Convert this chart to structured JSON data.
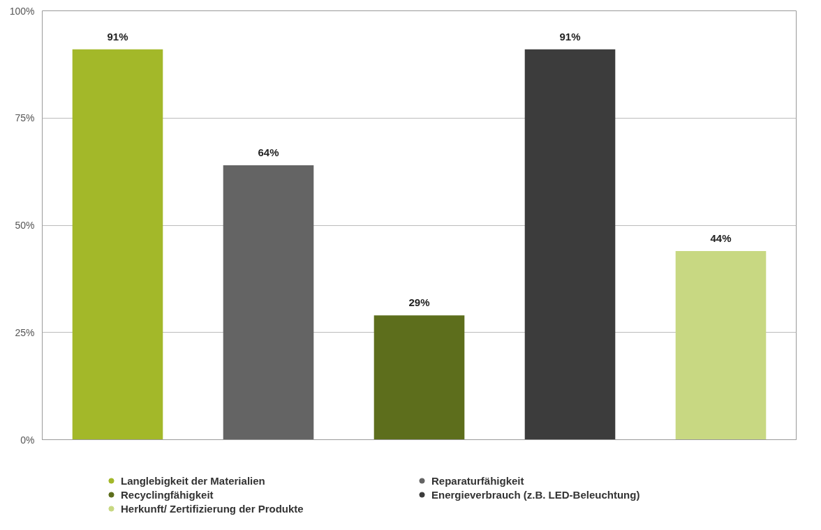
{
  "chart_data": {
    "type": "bar",
    "categories": [
      null,
      null,
      null,
      null,
      null
    ],
    "series": [
      {
        "name": "Langlebigkeit der Materialien",
        "color": "#a3b829",
        "values": [
          91,
          null,
          null,
          null,
          null
        ],
        "value_labels": [
          "91%",
          null,
          null,
          null,
          null
        ]
      },
      {
        "name": "Reparaturfähigkeit",
        "color": "#646464",
        "values": [
          null,
          64,
          null,
          null,
          null
        ],
        "value_labels": [
          null,
          "64%",
          null,
          null,
          null
        ]
      },
      {
        "name": "Recyclingfähigkeit",
        "color": "#5d6e1c",
        "values": [
          null,
          null,
          29,
          null,
          null
        ],
        "value_labels": [
          null,
          null,
          "29%",
          null,
          null
        ]
      },
      {
        "name": "Energieverbrauch (z.B. LED-Beleuchtung)",
        "color": "#3c3c3c",
        "values": [
          null,
          null,
          null,
          91,
          null
        ],
        "value_labels": [
          null,
          null,
          null,
          "91%",
          null
        ]
      },
      {
        "name": "Herkunft/ Zertifizierung der Produkte",
        "color": "#c8d882",
        "values": [
          null,
          null,
          null,
          null,
          44
        ],
        "value_labels": [
          null,
          null,
          null,
          null,
          "44%"
        ]
      }
    ],
    "ylim": [
      0,
      100
    ],
    "yticks": [
      {
        "value": 0,
        "label": "0%"
      },
      {
        "value": 25,
        "label": "25%"
      },
      {
        "value": 50,
        "label": "50%"
      },
      {
        "value": 75,
        "label": "75%"
      },
      {
        "value": 100,
        "label": "100%"
      }
    ],
    "grid": "y",
    "legend": "bottom"
  }
}
